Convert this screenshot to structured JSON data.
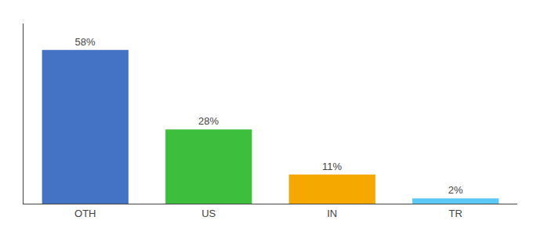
{
  "chart_data": {
    "type": "bar",
    "categories": [
      "OTH",
      "US",
      "IN",
      "TR"
    ],
    "values": [
      58,
      28,
      11,
      2
    ],
    "value_labels": [
      "58%",
      "28%",
      "11%",
      "2%"
    ],
    "colors": [
      "#4472C4",
      "#3DBF3D",
      "#F5A800",
      "#5BC8F5"
    ],
    "ylim": [
      0,
      68
    ],
    "data_labels": true,
    "tick_labels": "x",
    "grid": false
  }
}
